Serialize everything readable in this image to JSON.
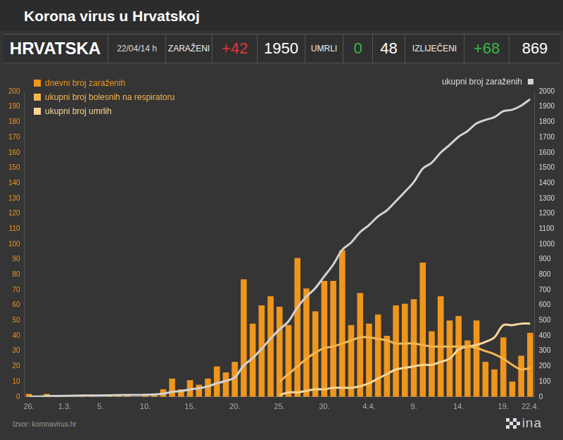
{
  "header": {
    "region": "HRVATSKA",
    "time": "22/04/14 h",
    "stats": [
      {
        "label": "ZARAŽENI",
        "change": "+42",
        "total": 1950,
        "color": "#e0363a"
      },
      {
        "label": "UMRLI",
        "change": "0",
        "total": 48,
        "color": "#3cb44a"
      },
      {
        "label": "IZLIJEČENI",
        "change": "+68",
        "total": 869,
        "color": "#3cb44a"
      }
    ]
  },
  "source": "Izvor: koronavirus.hr",
  "logo": "ina",
  "chart_data": {
    "type": "bar",
    "title": "Korona virus u Hrvatskoj",
    "categories": [
      "26.",
      null,
      null,
      null,
      "1.3.",
      null,
      null,
      null,
      "5.",
      null,
      null,
      null,
      null,
      "10.",
      null,
      null,
      null,
      null,
      "15.",
      null,
      null,
      null,
      null,
      "20.",
      null,
      null,
      null,
      null,
      "25.",
      null,
      null,
      null,
      null,
      "30.",
      null,
      null,
      null,
      null,
      "4.4.",
      null,
      null,
      null,
      null,
      "9.",
      null,
      null,
      null,
      null,
      "14.",
      null,
      null,
      null,
      null,
      "19.",
      null,
      null,
      "22.4."
    ],
    "series": [
      {
        "name": "dnevni broj zaraženih",
        "type": "bar",
        "color": "#ef961d",
        "values": [
          2,
          0,
          2,
          1,
          1,
          1,
          1,
          1,
          0,
          1,
          1,
          1,
          0,
          1,
          2,
          5,
          12,
          5,
          11,
          8,
          12,
          20,
          16,
          23,
          77,
          48,
          60,
          66,
          59,
          47,
          91,
          71,
          56,
          76,
          76,
          96,
          47,
          68,
          48,
          54,
          40,
          60,
          61,
          64,
          88,
          43,
          66,
          50,
          53,
          37,
          50,
          23,
          18,
          39,
          10,
          27,
          42
        ]
      },
      {
        "name": "ukupni broj zaraženih",
        "type": "line",
        "axis": "y2",
        "color": "#d2d2d2",
        "values": [
          3,
          3,
          5,
          6,
          7,
          8,
          9,
          10,
          10,
          11,
          12,
          13,
          13,
          14,
          16,
          21,
          33,
          38,
          49,
          57,
          69,
          89,
          105,
          128,
          206,
          254,
          315,
          382,
          442,
          495,
          586,
          657,
          713,
          790,
          867,
          963,
          1011,
          1079,
          1126,
          1182,
          1222,
          1282,
          1343,
          1407,
          1495,
          1534,
          1600,
          1650,
          1704,
          1741,
          1791,
          1814,
          1832,
          1871,
          1881,
          1908,
          1950
        ]
      },
      {
        "name": "ukupni broj bolesnih na respiratoru",
        "type": "line",
        "color": "#f5b651",
        "values": [
          null,
          null,
          null,
          null,
          null,
          null,
          null,
          null,
          null,
          null,
          null,
          null,
          null,
          null,
          null,
          null,
          null,
          null,
          null,
          null,
          null,
          null,
          null,
          null,
          null,
          null,
          null,
          null,
          10,
          15,
          20,
          25,
          29,
          32,
          33,
          35,
          37,
          39,
          39,
          38,
          37,
          35,
          35,
          35,
          34,
          33,
          33,
          33,
          33,
          33,
          32,
          30,
          28,
          25,
          21,
          18,
          19
        ]
      },
      {
        "name": "ukupni broj umrlih",
        "type": "line",
        "color": "#f9d698",
        "values": [
          null,
          null,
          null,
          null,
          null,
          null,
          null,
          null,
          null,
          null,
          null,
          null,
          null,
          null,
          null,
          null,
          null,
          null,
          null,
          null,
          null,
          null,
          null,
          null,
          null,
          null,
          null,
          null,
          1,
          3,
          3,
          4,
          5,
          5,
          6,
          6,
          6,
          7,
          9,
          12,
          15,
          18,
          19,
          20,
          21,
          21,
          23,
          25,
          31,
          33,
          34,
          36,
          39,
          47,
          47,
          48,
          48
        ]
      }
    ],
    "ylim": [
      0,
      200
    ],
    "yticks": [
      0,
      10,
      20,
      30,
      40,
      50,
      60,
      70,
      80,
      90,
      100,
      110,
      120,
      130,
      140,
      150,
      160,
      170,
      180,
      190,
      200
    ],
    "y2lim": [
      0,
      2000
    ],
    "y2ticks": [
      0,
      100,
      200,
      300,
      400,
      500,
      600,
      700,
      800,
      900,
      1000,
      1100,
      1200,
      1300,
      1400,
      1500,
      1600,
      1700,
      1800,
      1900,
      2000
    ],
    "grid": false,
    "legend": "top"
  }
}
